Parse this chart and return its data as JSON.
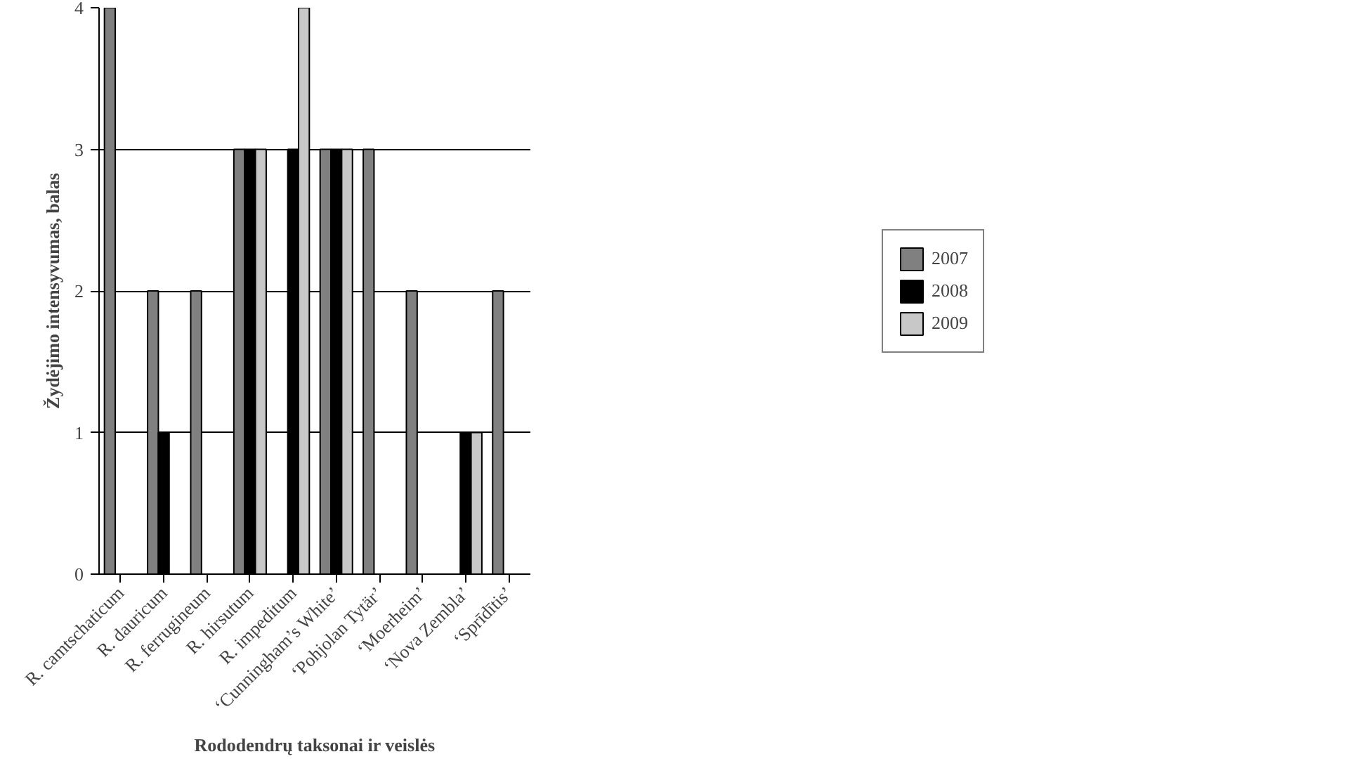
{
  "chart_data": {
    "type": "bar",
    "xlabel": "Rododendrų taksonai ir veislės",
    "ylabel": "Žydėjimo intensyvumas, balas",
    "categories": [
      "R. camtschaticum",
      "R. dauricum",
      "R. ferrugineum",
      "R. hirsutum",
      "R. impeditum",
      "‘Cunningham’s White’",
      "‘Pohjolan Tytär’",
      "‘Moerheim’",
      "‘Nova Zembla’",
      "‘Sprīdītis’"
    ],
    "series": [
      {
        "name": "2007",
        "color": "#808080",
        "values": [
          4,
          2,
          2,
          3,
          null,
          3,
          3,
          2,
          null,
          2
        ]
      },
      {
        "name": "2008",
        "color": "#000000",
        "values": [
          null,
          1,
          null,
          3,
          3,
          3,
          null,
          null,
          1,
          null
        ]
      },
      {
        "name": "2009",
        "color": "#c8c8c8",
        "values": [
          null,
          null,
          null,
          3,
          4,
          3,
          null,
          null,
          1,
          null
        ]
      }
    ],
    "ylim": [
      0,
      4
    ],
    "yticks": [
      0,
      1,
      2,
      3,
      4
    ],
    "grid": "y",
    "legend": "right"
  }
}
